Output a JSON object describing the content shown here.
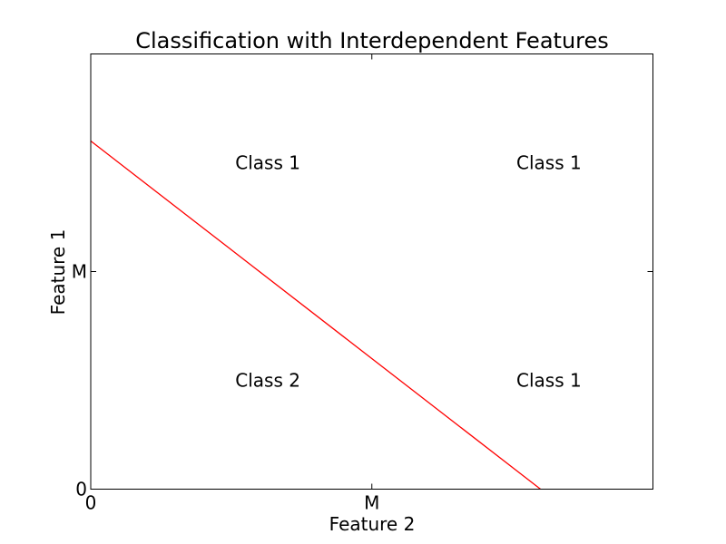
{
  "chart_data": {
    "type": "line",
    "title": "Classification with Interdependent Features",
    "xlabel": "Feature 2",
    "ylabel": "Feature 1",
    "xlim": [
      0,
      2
    ],
    "ylim": [
      0,
      2
    ],
    "x_ticks": [
      {
        "value": 0,
        "label": "0"
      },
      {
        "value": 1,
        "label": "M"
      }
    ],
    "y_ticks": [
      {
        "value": 0,
        "label": "0"
      },
      {
        "value": 1,
        "label": "M"
      }
    ],
    "grid": false,
    "series": [
      {
        "x": [
          0,
          1.6
        ],
        "y": [
          1.6,
          0
        ],
        "color": "#ff0000"
      }
    ],
    "annotations": [
      {
        "x": 0.63,
        "y": 1.5,
        "text": "Class 1"
      },
      {
        "x": 1.63,
        "y": 1.5,
        "text": "Class 1"
      },
      {
        "x": 0.63,
        "y": 0.5,
        "text": "Class 2"
      },
      {
        "x": 1.63,
        "y": 0.5,
        "text": "Class 1"
      }
    ]
  }
}
